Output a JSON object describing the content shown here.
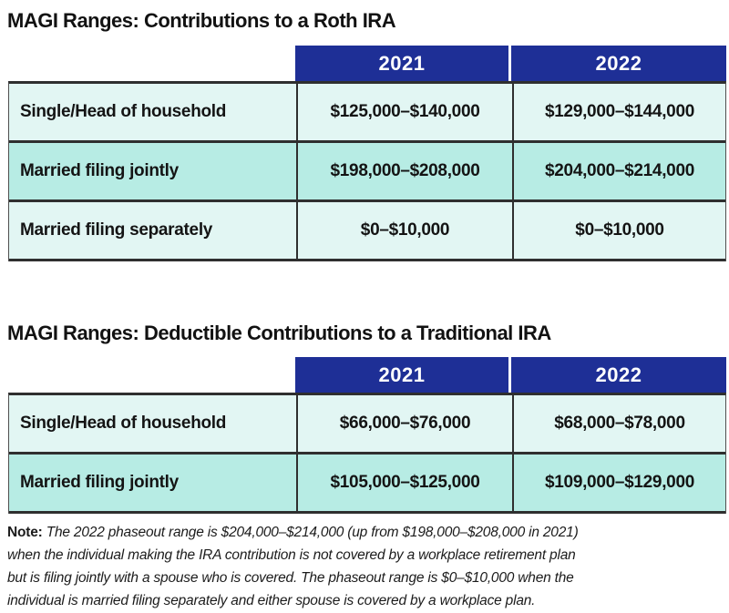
{
  "colors": {
    "header_blue": "#1e2f96",
    "row_light_cyan": "#e2f6f3",
    "row_dark_cyan": "#b7ece4",
    "border_dark": "#2f2f2f",
    "header_text": "#ffffff",
    "body_text": "#141414"
  },
  "chart_data": [
    {
      "type": "table",
      "title": "MAGI Ranges: Contributions to a Roth IRA",
      "columns": [
        "",
        "2021",
        "2022"
      ],
      "rows": [
        [
          "Single/Head of household",
          "$125,000–$140,000",
          "$129,000–$144,000"
        ],
        [
          "Married filing jointly",
          "$198,000–$208,000",
          "$204,000–$214,000"
        ],
        [
          "Married filing separately",
          "$0–$10,000",
          "$0–$10,000"
        ]
      ]
    },
    {
      "type": "table",
      "title": "MAGI Ranges: Deductible Contributions to a Traditional IRA",
      "columns": [
        "",
        "2021",
        "2022"
      ],
      "rows": [
        [
          "Single/Head of household",
          "$66,000–$76,000",
          "$68,000–$78,000"
        ],
        [
          "Married filing jointly",
          "$105,000–$125,000",
          "$109,000–$129,000"
        ]
      ]
    }
  ],
  "note": {
    "label": "Note:",
    "line1": "The 2022 phaseout range is $204,000–$214,000 (up from $198,000–$208,000 in 2021)",
    "line2": "when the individual making the IRA contribution is not covered by a workplace retirement plan",
    "line3": "but is filing jointly with a spouse who is covered. The phaseout range is $0–$10,000 when the",
    "line4": "individual is married filing separately and either spouse is covered by a workplace plan."
  }
}
